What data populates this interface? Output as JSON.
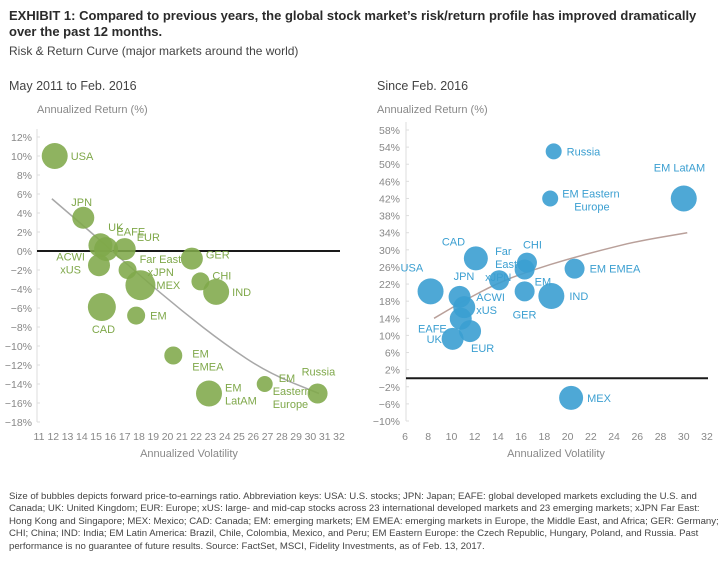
{
  "header": {
    "title": "EXHIBIT 1: Compared to previous years, the global stock market’s risk/return profile has improved dramatically over the past 12 months.",
    "subtitle": "Risk & Return Curve (major markets around the world)"
  },
  "colors": {
    "left_bubble": "#7fa84a",
    "right_bubble": "#3b9fd1",
    "trend": "#a8a8a8",
    "zero_line": "#1a1a1a"
  },
  "chart_data": [
    {
      "type": "scatter",
      "subtype": "bubble",
      "title": "May 2011 to Feb. 2016",
      "xlabel": "Annualized Volatility",
      "ylabel": "Annualized Return (%)",
      "xlim": [
        11,
        32
      ],
      "ylim": [
        -18,
        12
      ],
      "xticks": [
        "11",
        "12",
        "13",
        "14",
        "15",
        "16",
        "17",
        "18",
        "19",
        "20",
        "21",
        "22",
        "23",
        "24",
        "25",
        "26",
        "27",
        "28",
        "29",
        "30",
        "31",
        "32"
      ],
      "yticks": [
        "12%",
        "10%",
        "8%",
        "6%",
        "4%",
        "2%",
        "0%",
        "−2%",
        "−4%",
        "−6%",
        "−8%",
        "−10%",
        "−12%",
        "−14%",
        "−16%",
        "−18%"
      ],
      "zero_line": true,
      "trend_curve": [
        [
          11.9,
          5.5
        ],
        [
          15,
          1.5
        ],
        [
          18,
          -2.5
        ],
        [
          21,
          -6.3
        ],
        [
          24,
          -9.8
        ],
        [
          27,
          -12.8
        ],
        [
          30.6,
          -15
        ]
      ],
      "points": [
        {
          "label": "USA",
          "x": 12.1,
          "y": 10.0,
          "size": 13
        },
        {
          "label": "JPN",
          "x": 14.1,
          "y": 3.5,
          "size": 11
        },
        {
          "label": "EAFE",
          "x": 15.3,
          "y": 0.6,
          "size": 12
        },
        {
          "label": "UK",
          "x": 15.7,
          "y": 0.2,
          "size": 12
        },
        {
          "label": "EUR",
          "x": 17.0,
          "y": 0.2,
          "size": 11
        },
        {
          "label": "ACWI xUS",
          "x": 15.2,
          "y": -1.5,
          "size": 11
        },
        {
          "label": "Far East xJPN",
          "x": 17.2,
          "y": -2.0,
          "size": 9
        },
        {
          "label": "MEX",
          "x": 18.1,
          "y": -3.6,
          "size": 15
        },
        {
          "label": "CAD",
          "x": 15.4,
          "y": -5.9,
          "size": 14
        },
        {
          "label": "EM",
          "x": 17.8,
          "y": -6.8,
          "size": 9
        },
        {
          "label": "GER",
          "x": 21.7,
          "y": -0.8,
          "size": 11
        },
        {
          "label": "CHI",
          "x": 22.3,
          "y": -3.2,
          "size": 9
        },
        {
          "label": "IND",
          "x": 23.4,
          "y": -4.3,
          "size": 13
        },
        {
          "label": "EM EMEA",
          "x": 20.4,
          "y": -11.0,
          "size": 9
        },
        {
          "label": "EM LatAM",
          "x": 22.9,
          "y": -15.0,
          "size": 13
        },
        {
          "label": "EM Eastern Europe",
          "x": 26.8,
          "y": -14.0,
          "size": 8
        },
        {
          "label": "Russia",
          "x": 30.5,
          "y": -15.0,
          "size": 10
        }
      ]
    },
    {
      "type": "scatter",
      "subtype": "bubble",
      "title": "Since Feb. 2016",
      "xlabel": "Annualized Volatility",
      "ylabel": "Annualized Return (%)",
      "xlim": [
        6,
        32
      ],
      "ylim": [
        -10,
        58
      ],
      "xticks": [
        "6",
        "8",
        "10",
        "12",
        "14",
        "16",
        "18",
        "20",
        "22",
        "24",
        "26",
        "28",
        "30",
        "32"
      ],
      "yticks": [
        "58%",
        "54%",
        "50%",
        "46%",
        "42%",
        "38%",
        "34%",
        "30%",
        "26%",
        "22%",
        "18%",
        "14%",
        "10%",
        "6%",
        "2%",
        "−2%",
        "−6%",
        "−10%"
      ],
      "zero_line": true,
      "trend_curve": [
        [
          8.5,
          14
        ],
        [
          11,
          18
        ],
        [
          14,
          22.3
        ],
        [
          17,
          25.3
        ],
        [
          20,
          27.8
        ],
        [
          23,
          30
        ],
        [
          26,
          32
        ],
        [
          30.3,
          34
        ]
      ],
      "points": [
        {
          "label": "USA",
          "x": 8.2,
          "y": 20.3,
          "size": 13
        },
        {
          "label": "JPN",
          "x": 10.7,
          "y": 19.0,
          "size": 11
        },
        {
          "label": "ACWI xUS",
          "x": 11.1,
          "y": 16.6,
          "size": 11
        },
        {
          "label": "EAFE",
          "x": 10.8,
          "y": 13.9,
          "size": 11
        },
        {
          "label": "UK",
          "x": 10.1,
          "y": 9.2,
          "size": 11
        },
        {
          "label": "EUR",
          "x": 11.6,
          "y": 11.0,
          "size": 11
        },
        {
          "label": "CAD",
          "x": 12.1,
          "y": 28.0,
          "size": 12
        },
        {
          "label": "Far East xJPN",
          "x": 14.1,
          "y": 22.9,
          "size": 10
        },
        {
          "label": "CHI",
          "x": 16.5,
          "y": 27.0,
          "size": 10
        },
        {
          "label": "EM",
          "x": 16.3,
          "y": 25.4,
          "size": 10
        },
        {
          "label": "GER",
          "x": 16.3,
          "y": 20.3,
          "size": 10
        },
        {
          "label": "IND",
          "x": 18.6,
          "y": 19.2,
          "size": 13
        },
        {
          "label": "EM EMEA",
          "x": 20.6,
          "y": 25.6,
          "size": 10
        },
        {
          "label": "Russia",
          "x": 18.8,
          "y": 53.0,
          "size": 8
        },
        {
          "label": "EM Eastern Europe",
          "x": 18.5,
          "y": 42.0,
          "size": 8
        },
        {
          "label": "EM LatAM",
          "x": 30.0,
          "y": 42.0,
          "size": 13
        },
        {
          "label": "MEX",
          "x": 20.3,
          "y": -4.6,
          "size": 12
        }
      ]
    }
  ],
  "footnote": "Size of bubbles depicts forward price-to-earnings ratio. Abbreviation keys: USA: U.S. stocks; JPN: Japan; EAFE: global developed markets excluding the U.S. and Canada; UK: United Kingdom; EUR: Europe; xUS: large- and mid-cap stocks across 23 international developed markets and 23 emerging markets; xJPN Far East: Hong Kong and Singapore; MEX: Mexico; CAD: Canada; EM: emerging markets; EM EMEA: emerging markets in Europe, the Middle East, and Africa; GER: Germany; CHI; China; IND: India; EM Latin America: Brazil, Chile, Colombia, Mexico, and Peru; EM Eastern Europe: the Czech Republic, Hungary, Poland, and Russia. Past performance is no guarantee of future results. Source: FactSet, MSCI, Fidelity Investments, as of Feb. 13, 2017."
}
